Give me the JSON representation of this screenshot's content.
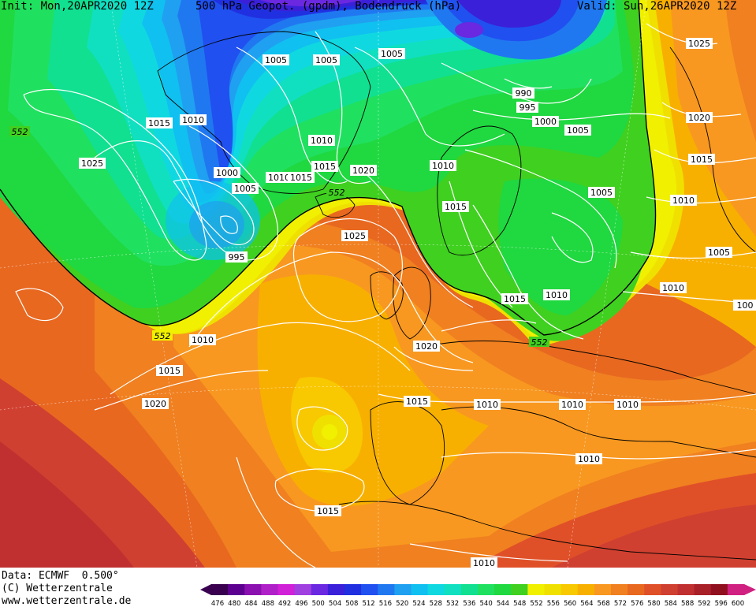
{
  "header": {
    "init": "Init: Mon,20APR2020 12Z",
    "title": "500 hPa Geopot. (gpdm), Bodendruck (hPa)",
    "valid": "Valid: Sun,26APR2020 12Z"
  },
  "footer": {
    "data_line": "Data: ECMWF  0.500°",
    "copyright": "(C) Wetterzentrale",
    "website": "www.wetterzentrale.de"
  },
  "colorbar": {
    "ticks": [
      "476",
      "480",
      "484",
      "488",
      "492",
      "496",
      "500",
      "504",
      "508",
      "512",
      "516",
      "520",
      "524",
      "528",
      "532",
      "536",
      "540",
      "544",
      "548",
      "552",
      "556",
      "560",
      "564",
      "568",
      "572",
      "576",
      "580",
      "584",
      "588",
      "592",
      "596",
      "600"
    ],
    "colors": [
      "#3a0050",
      "#5c0090",
      "#8a10b0",
      "#b020c8",
      "#d020d8",
      "#a040e0",
      "#6a28e0",
      "#3a20d8",
      "#2030e0",
      "#2050f0",
      "#2078f0",
      "#20a0f0",
      "#10c0f0",
      "#10d8e0",
      "#10e0c0",
      "#10e090",
      "#20e060",
      "#20d840",
      "#40d020",
      "#f0f000",
      "#f0e000",
      "#f8c800",
      "#f8b000",
      "#f89820",
      "#f08020",
      "#e86820",
      "#e05028",
      "#d04030",
      "#c03030",
      "#a82028",
      "#901020",
      "#d02080"
    ]
  },
  "map": {
    "isobar_labels": [
      {
        "id": "p1",
        "text": "1005"
      },
      {
        "id": "p2",
        "text": "1005"
      },
      {
        "id": "p3",
        "text": "1005"
      },
      {
        "id": "p4",
        "text": "990"
      },
      {
        "id": "p5",
        "text": "995"
      },
      {
        "id": "p6",
        "text": "1000"
      },
      {
        "id": "p7",
        "text": "1005"
      },
      {
        "id": "p8",
        "text": "1025"
      },
      {
        "id": "p9",
        "text": "1020"
      },
      {
        "id": "p10",
        "text": "1015"
      },
      {
        "id": "p11",
        "text": "1015"
      },
      {
        "id": "p12",
        "text": "1010"
      },
      {
        "id": "p13",
        "text": "1025"
      },
      {
        "id": "p14",
        "text": "1010"
      },
      {
        "id": "p15",
        "text": "1000"
      },
      {
        "id": "p16",
        "text": "1005"
      },
      {
        "id": "p17",
        "text": "1010"
      },
      {
        "id": "p18",
        "text": "1015"
      },
      {
        "id": "p19",
        "text": "1015"
      },
      {
        "id": "p20",
        "text": "1020"
      },
      {
        "id": "p21",
        "text": "1010"
      },
      {
        "id": "p22",
        "text": "1015"
      },
      {
        "id": "p23",
        "text": "1005"
      },
      {
        "id": "p24",
        "text": "995"
      },
      {
        "id": "p25",
        "text": "1025"
      },
      {
        "id": "p26",
        "text": "1010"
      },
      {
        "id": "p27",
        "text": "1015"
      },
      {
        "id": "p28",
        "text": "1010"
      },
      {
        "id": "p29",
        "text": "1005"
      },
      {
        "id": "p30",
        "text": "1010"
      },
      {
        "id": "p31",
        "text": "1010"
      },
      {
        "id": "p32",
        "text": "1020"
      },
      {
        "id": "p33",
        "text": "1015"
      },
      {
        "id": "p34",
        "text": "1015"
      },
      {
        "id": "p35",
        "text": "1020"
      },
      {
        "id": "p36",
        "text": "1015"
      },
      {
        "id": "p37",
        "text": "1010"
      },
      {
        "id": "p38",
        "text": "1010"
      },
      {
        "id": "p39",
        "text": "1010"
      },
      {
        "id": "p40",
        "text": "1010"
      },
      {
        "id": "p41",
        "text": "1015"
      },
      {
        "id": "p42",
        "text": "1010"
      },
      {
        "id": "p43",
        "text": "100"
      }
    ],
    "geopot_labels": [
      {
        "id": "g1",
        "text": "552"
      },
      {
        "id": "g2",
        "text": "552"
      },
      {
        "id": "g3",
        "text": "552"
      },
      {
        "id": "g4",
        "text": "552"
      }
    ]
  }
}
